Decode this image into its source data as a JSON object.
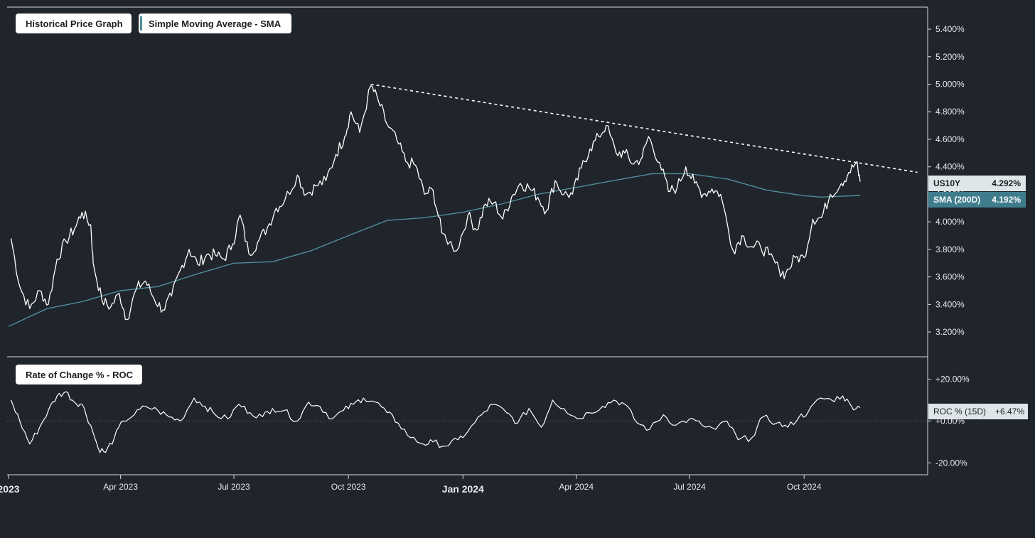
{
  "legend": {
    "price_label": "Historical Price Graph",
    "sma_label": "Simple Moving Average - SMA",
    "roc_label": "Rate of Change % - ROC"
  },
  "readouts": {
    "price_name": "US10Y",
    "price_value": "4.292%",
    "sma_name": "SMA (200D)",
    "sma_value": "4.192%",
    "roc_name": "ROC % (15D)",
    "roc_value": "+6.47%"
  },
  "colors": {
    "background": "#20242b",
    "price_line": "#ffffff",
    "sma_line": "#4f8e9c",
    "readout_price_bg": "#dfe6ea",
    "readout_sma_bg": "#3f7d8c",
    "trendline": "#ffffff"
  },
  "chart_data": [
    {
      "type": "line",
      "panel": "price",
      "y_tick_labels": [
        "5.400%",
        "5.200%",
        "5.000%",
        "4.800%",
        "4.600%",
        "4.400%",
        "4.200%",
        "4.000%",
        "3.800%",
        "3.600%",
        "3.400%",
        "3.200%"
      ],
      "y_ticks": [
        5.4,
        5.2,
        5.0,
        4.8,
        4.6,
        4.4,
        4.2,
        4.0,
        3.8,
        3.6,
        3.4,
        3.2
      ],
      "ylim": [
        3.03,
        5.55
      ],
      "xlim": [
        "2023-01-01",
        "2024-12-31"
      ],
      "series": [
        {
          "name": "US10Y",
          "x": [
            "2023-01-03",
            "2023-01-10",
            "2023-01-18",
            "2023-01-26",
            "2023-02-02",
            "2023-02-09",
            "2023-02-16",
            "2023-02-23",
            "2023-03-01",
            "2023-03-08",
            "2023-03-10",
            "2023-03-17",
            "2023-03-24",
            "2023-03-31",
            "2023-04-06",
            "2023-04-14",
            "2023-04-21",
            "2023-04-28",
            "2023-05-05",
            "2023-05-12",
            "2023-05-19",
            "2023-05-26",
            "2023-06-02",
            "2023-06-09",
            "2023-06-16",
            "2023-06-23",
            "2023-06-30",
            "2023-07-06",
            "2023-07-13",
            "2023-07-20",
            "2023-07-28",
            "2023-08-04",
            "2023-08-11",
            "2023-08-21",
            "2023-08-28",
            "2023-09-05",
            "2023-09-13",
            "2023-09-21",
            "2023-09-28",
            "2023-10-03",
            "2023-10-10",
            "2023-10-19",
            "2023-10-25",
            "2023-11-01",
            "2023-11-09",
            "2023-11-16",
            "2023-11-24",
            "2023-12-01",
            "2023-12-08",
            "2023-12-15",
            "2023-12-27",
            "2024-01-05",
            "2024-01-12",
            "2024-01-19",
            "2024-01-26",
            "2024-02-02",
            "2024-02-09",
            "2024-02-16",
            "2024-02-23",
            "2024-03-01",
            "2024-03-08",
            "2024-03-15",
            "2024-03-22",
            "2024-03-29",
            "2024-04-05",
            "2024-04-12",
            "2024-04-19",
            "2024-04-25",
            "2024-05-03",
            "2024-05-10",
            "2024-05-17",
            "2024-05-24",
            "2024-05-29",
            "2024-06-07",
            "2024-06-14",
            "2024-06-21",
            "2024-06-28",
            "2024-07-05",
            "2024-07-12",
            "2024-07-19",
            "2024-07-26",
            "2024-08-05",
            "2024-08-12",
            "2024-08-20",
            "2024-08-27",
            "2024-09-03",
            "2024-09-11",
            "2024-09-16",
            "2024-09-24",
            "2024-10-01",
            "2024-10-08",
            "2024-10-15",
            "2024-10-22",
            "2024-10-31",
            "2024-11-06",
            "2024-11-12",
            "2024-11-15"
          ],
          "values": [
            3.88,
            3.53,
            3.37,
            3.5,
            3.4,
            3.73,
            3.86,
            3.95,
            4.07,
            3.98,
            3.7,
            3.43,
            3.38,
            3.48,
            3.29,
            3.52,
            3.57,
            3.44,
            3.36,
            3.46,
            3.65,
            3.8,
            3.69,
            3.76,
            3.76,
            3.73,
            3.84,
            4.05,
            3.77,
            3.85,
            3.96,
            4.1,
            4.16,
            4.34,
            4.2,
            4.26,
            4.3,
            4.49,
            4.62,
            4.8,
            4.65,
            4.99,
            4.88,
            4.71,
            4.59,
            4.44,
            4.41,
            4.2,
            4.23,
            3.92,
            3.79,
            4.05,
            3.94,
            4.13,
            4.14,
            4.02,
            4.18,
            4.28,
            4.25,
            4.18,
            4.08,
            4.3,
            4.2,
            4.2,
            4.39,
            4.53,
            4.62,
            4.7,
            4.5,
            4.5,
            4.42,
            4.47,
            4.62,
            4.43,
            4.22,
            4.25,
            4.4,
            4.28,
            4.2,
            4.24,
            4.2,
            3.79,
            3.9,
            3.82,
            3.82,
            3.76,
            3.65,
            3.62,
            3.74,
            3.74,
            4.02,
            4.03,
            4.2,
            4.28,
            4.36,
            4.43,
            4.292
          ]
        },
        {
          "name": "SMA (200D)",
          "x": [
            "2023-01-01",
            "2023-02-01",
            "2023-03-01",
            "2023-04-01",
            "2023-05-01",
            "2023-06-01",
            "2023-07-01",
            "2023-08-01",
            "2023-09-01",
            "2023-10-01",
            "2023-11-01",
            "2023-12-01",
            "2024-01-01",
            "2024-02-01",
            "2024-03-01",
            "2024-04-01",
            "2024-05-01",
            "2024-06-01",
            "2024-07-01",
            "2024-08-01",
            "2024-09-01",
            "2024-10-01",
            "2024-10-15",
            "2024-11-15"
          ],
          "values": [
            3.24,
            3.37,
            3.42,
            3.5,
            3.53,
            3.62,
            3.7,
            3.71,
            3.79,
            3.9,
            4.01,
            4.03,
            4.07,
            4.13,
            4.2,
            4.25,
            4.3,
            4.35,
            4.35,
            4.31,
            4.23,
            4.19,
            4.18,
            4.192
          ]
        }
      ],
      "trendline": {
        "x": [
          "2023-10-19",
          "2024-12-31"
        ],
        "values": [
          5.0,
          4.36
        ]
      }
    },
    {
      "type": "line",
      "panel": "roc",
      "y_tick_labels": [
        "+20.00%",
        "+0.00%",
        "-20.00%"
      ],
      "y_ticks": [
        20,
        0,
        -20
      ],
      "ylim": [
        -25,
        30
      ],
      "series": [
        {
          "name": "ROC % (15D)",
          "x": [
            "2023-01-03",
            "2023-01-10",
            "2023-01-18",
            "2023-01-26",
            "2023-02-02",
            "2023-02-09",
            "2023-02-16",
            "2023-02-23",
            "2023-03-01",
            "2023-03-08",
            "2023-03-14",
            "2023-03-20",
            "2023-03-27",
            "2023-04-03",
            "2023-04-12",
            "2023-04-21",
            "2023-05-01",
            "2023-05-10",
            "2023-05-19",
            "2023-05-30",
            "2023-06-08",
            "2023-06-16",
            "2023-06-26",
            "2023-07-05",
            "2023-07-14",
            "2023-07-24",
            "2023-08-01",
            "2023-08-10",
            "2023-08-21",
            "2023-08-30",
            "2023-09-08",
            "2023-09-18",
            "2023-09-27",
            "2023-10-05",
            "2023-10-13",
            "2023-10-23",
            "2023-11-01",
            "2023-11-10",
            "2023-11-20",
            "2023-11-30",
            "2023-12-08",
            "2023-12-18",
            "2023-12-28",
            "2024-01-05",
            "2024-01-16",
            "2024-01-25",
            "2024-02-05",
            "2024-02-14",
            "2024-02-23",
            "2024-03-04",
            "2024-03-13",
            "2024-03-22",
            "2024-04-02",
            "2024-04-11",
            "2024-04-22",
            "2024-05-01",
            "2024-05-10",
            "2024-05-20",
            "2024-05-30",
            "2024-06-10",
            "2024-06-20",
            "2024-07-01",
            "2024-07-11",
            "2024-07-22",
            "2024-07-31",
            "2024-08-09",
            "2024-08-20",
            "2024-08-29",
            "2024-09-09",
            "2024-09-18",
            "2024-09-27",
            "2024-10-04",
            "2024-10-14",
            "2024-10-23",
            "2024-11-01",
            "2024-11-08",
            "2024-11-15"
          ],
          "values": [
            10,
            0,
            -11,
            -3,
            5,
            12,
            14,
            9,
            8,
            -2,
            -13,
            -15,
            -8,
            0,
            3,
            7,
            5,
            2,
            0,
            11,
            7,
            3,
            1,
            8,
            4,
            2,
            6,
            5,
            0,
            9,
            7,
            1,
            5,
            8,
            11,
            9,
            4,
            -1,
            -8,
            -11,
            -10,
            -12,
            -9,
            -5,
            3,
            8,
            4,
            -1,
            6,
            -3,
            10,
            6,
            1,
            4,
            7,
            10,
            8,
            -1,
            -4,
            3,
            -2,
            1,
            -2,
            -4,
            0,
            -9,
            -8,
            2,
            -1,
            -3,
            2,
            4,
            11,
            10,
            12,
            7,
            6.47
          ]
        }
      ]
    }
  ],
  "x_axis": {
    "labels": [
      {
        "date": "2023-01-01",
        "text": "2023"
      },
      {
        "date": "2023-04-01",
        "text": "Apr 2023"
      },
      {
        "date": "2023-07-01",
        "text": "Jul 2023"
      },
      {
        "date": "2023-10-01",
        "text": "Oct 2023"
      },
      {
        "date": "2024-01-01",
        "text": "Jan 2024"
      },
      {
        "date": "2024-04-01",
        "text": "Apr 2024"
      },
      {
        "date": "2024-07-01",
        "text": "Jul 2024"
      },
      {
        "date": "2024-10-01",
        "text": "Oct 2024"
      }
    ]
  }
}
